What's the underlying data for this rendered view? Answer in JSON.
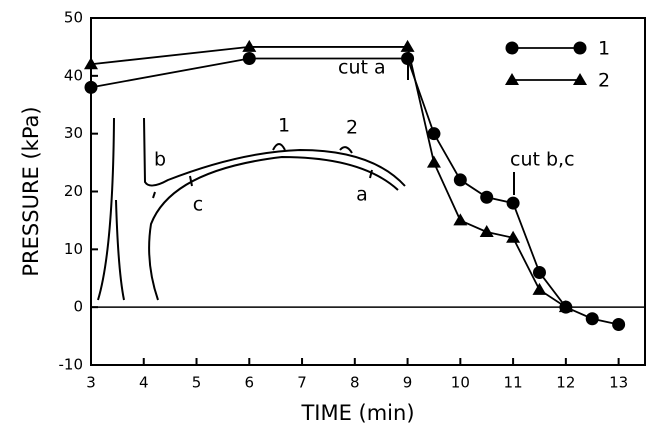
{
  "chart_data": {
    "type": "line",
    "x_label": "TIME (min)",
    "y_label": "PRESSURE (kPa)",
    "xlim": [
      3,
      13.5
    ],
    "ylim": [
      -10,
      50
    ],
    "xticks": [
      3,
      4,
      5,
      6,
      7,
      8,
      9,
      10,
      11,
      12,
      13
    ],
    "yticks": [
      -10,
      0,
      10,
      20,
      30,
      40,
      50
    ],
    "legend": "upper right",
    "series": [
      {
        "name": "1",
        "color": "#000000",
        "marker": "circle",
        "x": [
          3,
          6,
          9,
          9.5,
          10,
          10.5,
          11,
          11.5,
          12,
          12.5,
          13
        ],
        "values": [
          38,
          43,
          43,
          30,
          22,
          19,
          18,
          6,
          0,
          -2,
          -3
        ]
      },
      {
        "name": "2",
        "color": "#000000",
        "marker": "triangle",
        "x": [
          3,
          6,
          9,
          9.5,
          10,
          10.5,
          11,
          11.5,
          12
        ],
        "values": [
          42,
          45,
          45,
          25,
          15,
          13,
          12,
          3,
          0
        ]
      }
    ],
    "annotations": [
      "cut a",
      "cut b,c"
    ],
    "inset_labels": [
      "b",
      "c",
      "1",
      "2",
      "a"
    ]
  }
}
